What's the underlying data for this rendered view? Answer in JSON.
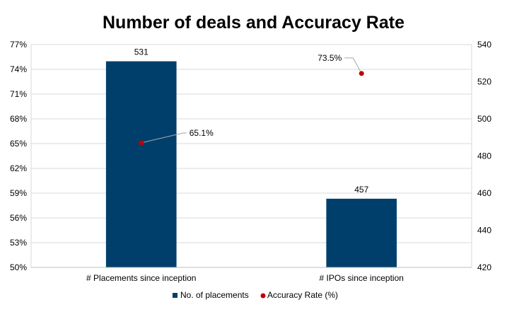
{
  "chart_data": {
    "type": "bar",
    "title": "Number of deals and Accuracy Rate",
    "categories": [
      "# Placements since inception",
      "# IPOs since inception"
    ],
    "series": [
      {
        "name": "No. of placements",
        "kind": "bar",
        "axis": "right",
        "color": "#003F6B",
        "values": [
          531,
          457
        ],
        "labels": [
          "531",
          "457"
        ]
      },
      {
        "name": "Accuracy Rate (%)",
        "kind": "scatter",
        "axis": "left",
        "color": "#C00000",
        "values": [
          65.1,
          73.5
        ],
        "labels": [
          "65.1%",
          "73.5%"
        ]
      }
    ],
    "y_left": {
      "min": 50,
      "max": 77,
      "ticks": [
        "50%",
        "53%",
        "56%",
        "59%",
        "62%",
        "65%",
        "68%",
        "71%",
        "74%",
        "77%"
      ]
    },
    "y_right": {
      "min": 420,
      "max": 540,
      "ticks": [
        "420",
        "440",
        "460",
        "480",
        "500",
        "520",
        "540"
      ]
    },
    "grid": true,
    "legend": "bottom"
  }
}
